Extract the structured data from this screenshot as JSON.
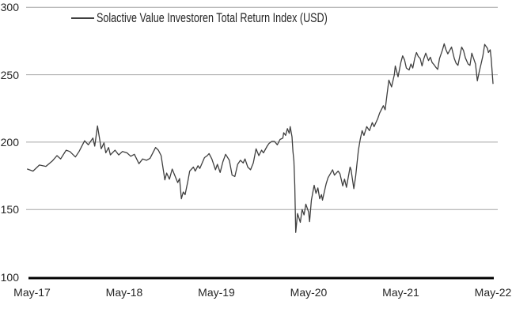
{
  "colors": {
    "background": "#ffffff",
    "grid": "#a6a6a6",
    "axis": "#000000",
    "text": "#262626",
    "line": "#3f3f3f"
  },
  "chart_data": {
    "type": "line",
    "title": "",
    "xlabel": "",
    "ylabel": "",
    "legend_position": "top",
    "grid": "horizontal",
    "ylim": [
      100,
      300
    ],
    "y_ticks": [
      100,
      150,
      200,
      250,
      300
    ],
    "x_unit": "years-since-May-2017",
    "x_ticks": [
      {
        "t": 0,
        "label": "May-17"
      },
      {
        "t": 1,
        "label": "May-18"
      },
      {
        "t": 2,
        "label": "May-19"
      },
      {
        "t": 3,
        "label": "May-20"
      },
      {
        "t": 4,
        "label": "May-21"
      },
      {
        "t": 5,
        "label": "May-22"
      }
    ],
    "series": [
      {
        "name": "Solactive Value Investoren Total Return Index (USD)",
        "color": "#3f3f3f",
        "points": [
          [
            -0.05,
            180
          ],
          [
            0.01,
            178.5
          ],
          [
            0.08,
            183
          ],
          [
            0.15,
            182
          ],
          [
            0.22,
            186
          ],
          [
            0.27,
            190
          ],
          [
            0.31,
            187.5
          ],
          [
            0.37,
            194
          ],
          [
            0.41,
            193
          ],
          [
            0.47,
            189
          ],
          [
            0.51,
            193
          ],
          [
            0.57,
            201
          ],
          [
            0.61,
            198
          ],
          [
            0.66,
            203
          ],
          [
            0.68,
            197
          ],
          [
            0.71,
            212
          ],
          [
            0.75,
            195
          ],
          [
            0.78,
            199.5
          ],
          [
            0.8,
            192
          ],
          [
            0.83,
            196
          ],
          [
            0.85,
            190.5
          ],
          [
            0.9,
            194
          ],
          [
            0.94,
            190.5
          ],
          [
            0.98,
            193
          ],
          [
            1.03,
            192
          ],
          [
            1.07,
            189.5
          ],
          [
            1.11,
            191
          ],
          [
            1.16,
            184
          ],
          [
            1.2,
            187.5
          ],
          [
            1.24,
            186.5
          ],
          [
            1.28,
            188
          ],
          [
            1.34,
            196
          ],
          [
            1.37,
            194
          ],
          [
            1.4,
            190
          ],
          [
            1.44,
            172
          ],
          [
            1.46,
            177
          ],
          [
            1.49,
            172.5
          ],
          [
            1.52,
            180
          ],
          [
            1.55,
            175
          ],
          [
            1.58,
            170
          ],
          [
            1.6,
            173
          ],
          [
            1.62,
            158
          ],
          [
            1.64,
            163
          ],
          [
            1.66,
            161
          ],
          [
            1.69,
            171
          ],
          [
            1.71,
            178.5
          ],
          [
            1.75,
            181.5
          ],
          [
            1.77,
            178.5
          ],
          [
            1.8,
            182.5
          ],
          [
            1.82,
            180.5
          ],
          [
            1.87,
            188.5
          ],
          [
            1.9,
            190
          ],
          [
            1.92,
            191.5
          ],
          [
            1.95,
            187.5
          ],
          [
            1.99,
            179.5
          ],
          [
            2.01,
            183.5
          ],
          [
            2.04,
            177.5
          ],
          [
            2.07,
            185.5
          ],
          [
            2.1,
            191
          ],
          [
            2.14,
            186.5
          ],
          [
            2.17,
            175.5
          ],
          [
            2.2,
            174.5
          ],
          [
            2.23,
            183.5
          ],
          [
            2.26,
            186.5
          ],
          [
            2.29,
            184.5
          ],
          [
            2.31,
            187.5
          ],
          [
            2.34,
            181.5
          ],
          [
            2.37,
            179.5
          ],
          [
            2.4,
            184.5
          ],
          [
            2.43,
            195
          ],
          [
            2.46,
            190
          ],
          [
            2.49,
            194
          ],
          [
            2.51,
            192
          ],
          [
            2.55,
            197
          ],
          [
            2.57,
            199
          ],
          [
            2.6,
            200.5
          ],
          [
            2.63,
            200.5
          ],
          [
            2.66,
            198
          ],
          [
            2.69,
            202
          ],
          [
            2.72,
            203
          ],
          [
            2.73,
            207
          ],
          [
            2.75,
            205
          ],
          [
            2.77,
            210
          ],
          [
            2.79,
            206.5
          ],
          [
            2.8,
            211.5
          ],
          [
            2.82,
            204
          ],
          [
            2.83,
            193
          ],
          [
            2.84,
            186
          ],
          [
            2.85,
            168
          ],
          [
            2.86,
            133
          ],
          [
            2.88,
            147
          ],
          [
            2.91,
            140.5
          ],
          [
            2.93,
            150
          ],
          [
            2.95,
            146
          ],
          [
            2.97,
            154
          ],
          [
            3.0,
            148
          ],
          [
            3.01,
            141
          ],
          [
            3.03,
            157
          ],
          [
            3.06,
            168
          ],
          [
            3.08,
            162
          ],
          [
            3.1,
            166
          ],
          [
            3.12,
            158
          ],
          [
            3.14,
            161
          ],
          [
            3.15,
            157
          ],
          [
            3.17,
            163
          ],
          [
            3.19,
            169
          ],
          [
            3.21,
            173.5
          ],
          [
            3.26,
            179.5
          ],
          [
            3.28,
            175.5
          ],
          [
            3.32,
            178.5
          ],
          [
            3.34,
            176.5
          ],
          [
            3.37,
            167.5
          ],
          [
            3.39,
            172.5
          ],
          [
            3.41,
            166.5
          ],
          [
            3.45,
            181.5
          ],
          [
            3.46,
            179.5
          ],
          [
            3.49,
            165.5
          ],
          [
            3.51,
            174.5
          ],
          [
            3.54,
            194
          ],
          [
            3.56,
            202
          ],
          [
            3.58,
            208.5
          ],
          [
            3.6,
            205
          ],
          [
            3.63,
            211.5
          ],
          [
            3.66,
            208.5
          ],
          [
            3.69,
            214.5
          ],
          [
            3.71,
            211.5
          ],
          [
            3.75,
            217.5
          ],
          [
            3.77,
            221.5
          ],
          [
            3.81,
            227
          ],
          [
            3.83,
            224
          ],
          [
            3.85,
            235
          ],
          [
            3.87,
            246
          ],
          [
            3.9,
            241
          ],
          [
            3.93,
            250
          ],
          [
            3.94,
            256.5
          ],
          [
            3.97,
            248.5
          ],
          [
            4.0,
            259
          ],
          [
            4.02,
            264
          ],
          [
            4.04,
            261
          ],
          [
            4.06,
            255
          ],
          [
            4.09,
            253.5
          ],
          [
            4.11,
            258
          ],
          [
            4.13,
            255
          ],
          [
            4.15,
            262
          ],
          [
            4.17,
            266.5
          ],
          [
            4.19,
            263.5
          ],
          [
            4.21,
            262
          ],
          [
            4.23,
            256.5
          ],
          [
            4.25,
            262
          ],
          [
            4.27,
            266
          ],
          [
            4.3,
            260.5
          ],
          [
            4.32,
            263
          ],
          [
            4.34,
            259
          ],
          [
            4.36,
            257.5
          ],
          [
            4.38,
            255.5
          ],
          [
            4.4,
            254
          ],
          [
            4.42,
            262
          ],
          [
            4.45,
            268
          ],
          [
            4.47,
            273
          ],
          [
            4.49,
            268.5
          ],
          [
            4.51,
            265.5
          ],
          [
            4.53,
            268
          ],
          [
            4.55,
            270.5
          ],
          [
            4.58,
            262
          ],
          [
            4.6,
            258.5
          ],
          [
            4.62,
            257
          ],
          [
            4.64,
            264
          ],
          [
            4.66,
            270.5
          ],
          [
            4.68,
            268
          ],
          [
            4.7,
            262.5
          ],
          [
            4.73,
            258
          ],
          [
            4.75,
            257
          ],
          [
            4.77,
            266
          ],
          [
            4.79,
            262
          ],
          [
            4.81,
            258
          ],
          [
            4.83,
            245.5
          ],
          [
            4.85,
            252
          ],
          [
            4.87,
            258
          ],
          [
            4.89,
            264
          ],
          [
            4.91,
            272.5
          ],
          [
            4.94,
            269.5
          ],
          [
            4.95,
            266.5
          ],
          [
            4.97,
            268.5
          ],
          [
            4.98,
            262
          ],
          [
            5.0,
            243.5
          ]
        ]
      }
    ]
  }
}
